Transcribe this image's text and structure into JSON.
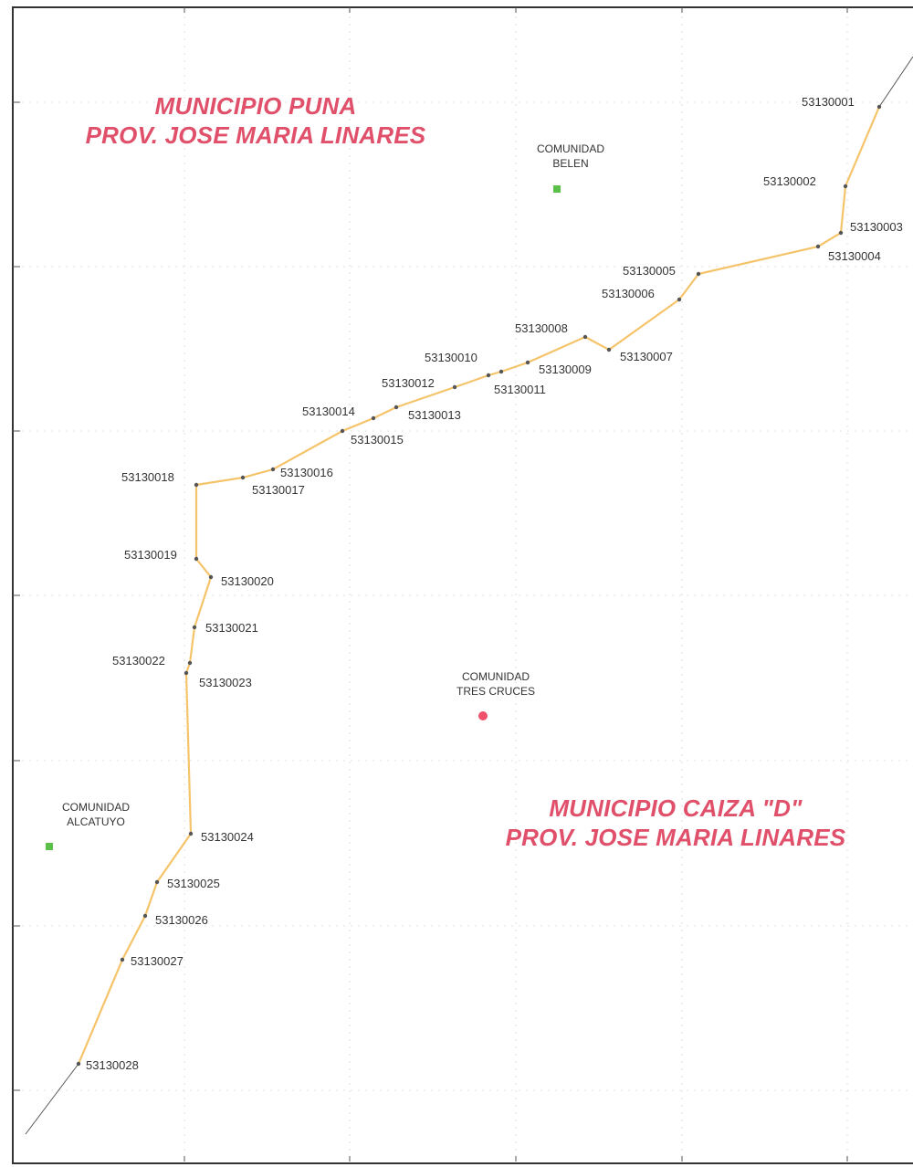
{
  "map": {
    "regions": {
      "north": {
        "line1": "MUNICIPIO PUNA",
        "line2": "PROV. JOSE MARIA LINARES"
      },
      "south": {
        "line1": "MUNICIPIO CAIZA \"D\"",
        "line2": "PROV. JOSE MARIA LINARES"
      }
    },
    "communities": [
      {
        "line1": "COMUNIDAD",
        "line2": "BELEN",
        "color": "#5cbf4a"
      },
      {
        "line1": "COMUNIDAD",
        "line2": "TRES CRUCES",
        "color": "#f0506a"
      },
      {
        "line1": "COMUNIDAD",
        "line2": "ALCATUYO",
        "color": "#5cbf4a"
      }
    ],
    "boundary_points": [
      "53130001",
      "53130002",
      "53130003",
      "53130004",
      "53130005",
      "53130006",
      "53130007",
      "53130008",
      "53130009",
      "53130010",
      "53130011",
      "53130012",
      "53130013",
      "53130014",
      "53130015",
      "53130016",
      "53130017",
      "53130018",
      "53130019",
      "53130020",
      "53130021",
      "53130022",
      "53130023",
      "53130024",
      "53130025",
      "53130026",
      "53130027",
      "53130028"
    ],
    "colors": {
      "boundary": "#f5c46a",
      "frame": "#333333",
      "grid": "#cccccc",
      "label_red": "#e0506a"
    }
  }
}
